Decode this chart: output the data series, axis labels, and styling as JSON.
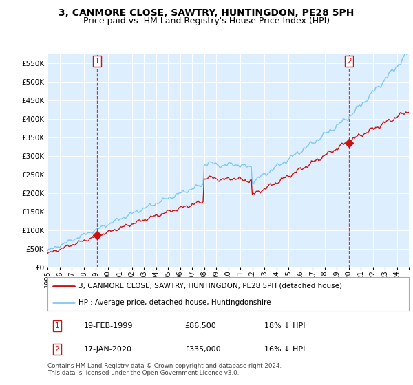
{
  "title": "3, CANMORE CLOSE, SAWTRY, HUNTINGDON, PE28 5PH",
  "subtitle": "Price paid vs. HM Land Registry's House Price Index (HPI)",
  "ylim": [
    0,
    575000
  ],
  "yticks": [
    0,
    50000,
    100000,
    150000,
    200000,
    250000,
    300000,
    350000,
    400000,
    450000,
    500000,
    550000
  ],
  "ytick_labels": [
    "£0",
    "£50K",
    "£100K",
    "£150K",
    "£200K",
    "£250K",
    "£300K",
    "£350K",
    "£400K",
    "£450K",
    "£500K",
    "£550K"
  ],
  "hpi_color": "#7ec8f0",
  "price_color": "#cc1111",
  "vline_color": "#cc1111",
  "sale1_year": 1999.12,
  "sale1_price": 86500,
  "sale2_year": 2020.04,
  "sale2_price": 335000,
  "sale1": {
    "label": "1",
    "date": "19-FEB-1999",
    "price": "£86,500",
    "hpi_diff": "18% ↓ HPI"
  },
  "sale2": {
    "label": "2",
    "date": "17-JAN-2020",
    "price": "£335,000",
    "hpi_diff": "16% ↓ HPI"
  },
  "legend_line1": "3, CANMORE CLOSE, SAWTRY, HUNTINGDON, PE28 5PH (detached house)",
  "legend_line2": "HPI: Average price, detached house, Huntingdonshire",
  "footer": "Contains HM Land Registry data © Crown copyright and database right 2024.\nThis data is licensed under the Open Government Licence v3.0.",
  "background_color": "#ffffff",
  "chart_bg_color": "#ddeeff",
  "grid_color": "#ffffff",
  "title_fontsize": 10,
  "subtitle_fontsize": 9
}
